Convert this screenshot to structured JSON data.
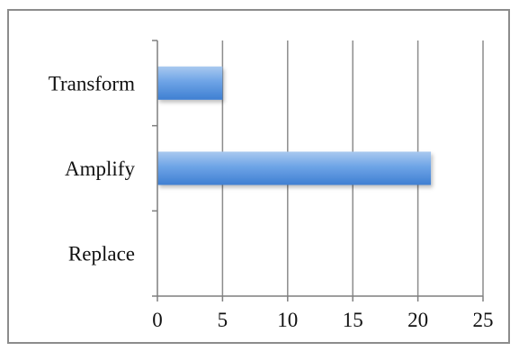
{
  "chart_data": {
    "type": "bar",
    "orientation": "horizontal",
    "categories": [
      "Replace",
      "Amplify",
      "Transform"
    ],
    "values": [
      0,
      21,
      5
    ],
    "xlim": [
      0,
      25
    ],
    "x_ticks": [
      "0",
      "5",
      "10",
      "15",
      "20",
      "25"
    ],
    "grid": "vertical",
    "legend": "none",
    "colors": {
      "bar_top": "#a9c9ef",
      "bar_mid": "#6ea4e6",
      "bar_bottom": "#3f7fd2",
      "grid": "#8c8c8c",
      "axis": "#7f7f7f",
      "frame": "#8c8c8c"
    }
  }
}
